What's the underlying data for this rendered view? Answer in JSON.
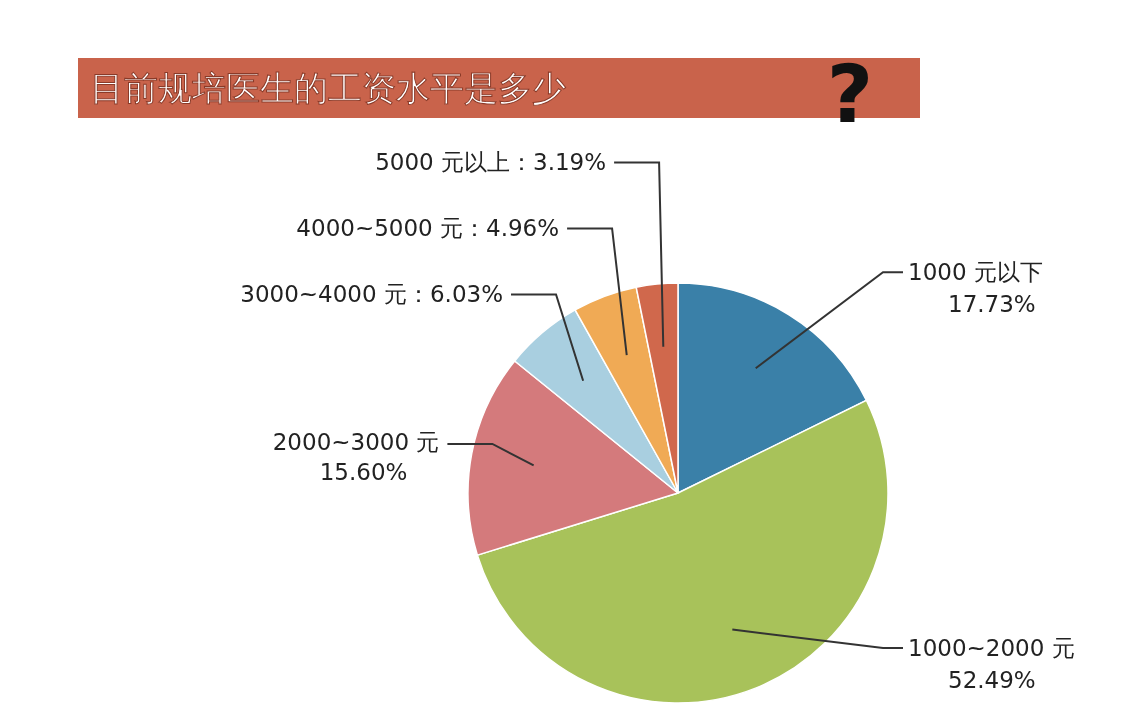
{
  "chart_data": {
    "type": "pie",
    "title": "目前规培医生的工资水平是多少",
    "annotations": [
      "?"
    ],
    "categories": [
      "1000 元以下",
      "1000~2000 元",
      "2000~3000 元",
      "3000~4000 元",
      "4000~5000 元",
      "5000 元以上"
    ],
    "values": [
      17.73,
      52.49,
      15.6,
      6.03,
      4.96,
      3.19
    ],
    "colors": [
      "#3a80a8",
      "#a8c25a",
      "#d47a7c",
      "#a9cfe0",
      "#f0aa55",
      "#d0684c"
    ],
    "value_labels": [
      "17.73%",
      "52.49%",
      "15.60%",
      "6.03%",
      "4.96%",
      "3.19%"
    ]
  }
}
